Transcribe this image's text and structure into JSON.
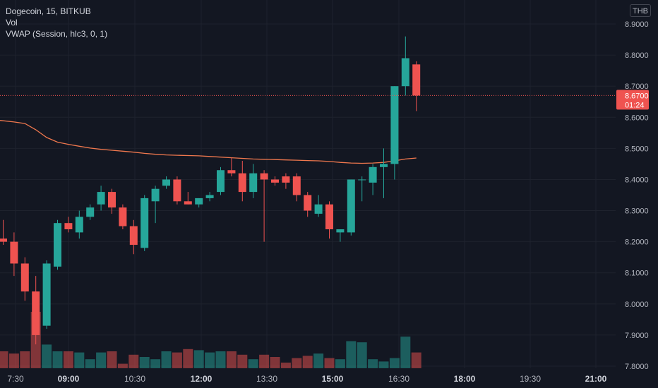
{
  "legend": {
    "symbol_line": "Dogecoin, 15, BITKUB",
    "volume_label": "Vol",
    "vwap_label": "VWAP (Session, hlc3, 0, 1)"
  },
  "currency": "THB",
  "last_price_label": {
    "price": "8.6700",
    "countdown": "01:24"
  },
  "colors": {
    "background": "#131722",
    "up": "#26a69a",
    "down": "#ef5350",
    "vwap": "#f0784e",
    "grid": "#1e222d",
    "axis_text": "#b2b5be"
  },
  "chart_data": {
    "type": "candlestick",
    "y_axis": {
      "ticks": [
        "7.8000",
        "7.9000",
        "8.0000",
        "8.1000",
        "8.2000",
        "8.3000",
        "8.4000",
        "8.5000",
        "8.6000",
        "8.7000",
        "8.8000",
        "8.9000"
      ],
      "range": [
        7.795,
        8.935
      ]
    },
    "x_axis": {
      "ticks": [
        {
          "label": "7:30",
          "bold": false
        },
        {
          "label": "09:00",
          "bold": true
        },
        {
          "label": "10:30",
          "bold": false
        },
        {
          "label": "12:00",
          "bold": true
        },
        {
          "label": "13:30",
          "bold": false
        },
        {
          "label": "15:00",
          "bold": true
        },
        {
          "label": "16:30",
          "bold": false
        },
        {
          "label": "18:00",
          "bold": true
        },
        {
          "label": "19:30",
          "bold": false
        },
        {
          "label": "21:00",
          "bold": true
        }
      ]
    },
    "last_price": 8.67,
    "candles": [
      {
        "time": "07:15",
        "o": 8.21,
        "h": 8.27,
        "l": 8.19,
        "c": 8.2,
        "vol": 0.3
      },
      {
        "time": "07:30",
        "o": 8.2,
        "h": 8.23,
        "l": 8.09,
        "c": 8.13,
        "vol": 0.26
      },
      {
        "time": "07:45",
        "o": 8.13,
        "h": 8.15,
        "l": 8.01,
        "c": 8.04,
        "vol": 0.3
      },
      {
        "time": "08:00",
        "o": 8.04,
        "h": 8.09,
        "l": 7.87,
        "c": 7.9,
        "vol": 1.0
      },
      {
        "time": "08:15",
        "o": 7.93,
        "h": 8.14,
        "l": 7.92,
        "c": 8.13,
        "vol": 0.42
      },
      {
        "time": "08:30",
        "o": 8.12,
        "h": 8.27,
        "l": 8.11,
        "c": 8.26,
        "vol": 0.3
      },
      {
        "time": "08:45",
        "o": 8.26,
        "h": 8.28,
        "l": 8.23,
        "c": 8.24,
        "vol": 0.3
      },
      {
        "time": "09:00",
        "o": 8.23,
        "h": 8.3,
        "l": 8.21,
        "c": 8.28,
        "vol": 0.28
      },
      {
        "time": "09:15",
        "o": 8.28,
        "h": 8.32,
        "l": 8.27,
        "c": 8.31,
        "vol": 0.16
      },
      {
        "time": "09:30",
        "o": 8.32,
        "h": 8.38,
        "l": 8.3,
        "c": 8.36,
        "vol": 0.28
      },
      {
        "time": "09:45",
        "o": 8.36,
        "h": 8.37,
        "l": 8.29,
        "c": 8.31,
        "vol": 0.3
      },
      {
        "time": "10:00",
        "o": 8.31,
        "h": 8.32,
        "l": 8.24,
        "c": 8.25,
        "vol": 0.08
      },
      {
        "time": "10:15",
        "o": 8.25,
        "h": 8.27,
        "l": 8.16,
        "c": 8.19,
        "vol": 0.24
      },
      {
        "time": "10:30",
        "o": 8.18,
        "h": 8.35,
        "l": 8.17,
        "c": 8.34,
        "vol": 0.2
      },
      {
        "time": "10:45",
        "o": 8.33,
        "h": 8.38,
        "l": 8.26,
        "c": 8.37,
        "vol": 0.16
      },
      {
        "time": "11:00",
        "o": 8.38,
        "h": 8.41,
        "l": 8.37,
        "c": 8.4,
        "vol": 0.3
      },
      {
        "time": "11:15",
        "o": 8.4,
        "h": 8.41,
        "l": 8.32,
        "c": 8.33,
        "vol": 0.28
      },
      {
        "time": "11:30",
        "o": 8.33,
        "h": 8.36,
        "l": 8.32,
        "c": 8.32,
        "vol": 0.34
      },
      {
        "time": "11:45",
        "o": 8.32,
        "h": 8.34,
        "l": 8.31,
        "c": 8.34,
        "vol": 0.32
      },
      {
        "time": "12:00",
        "o": 8.34,
        "h": 8.36,
        "l": 8.33,
        "c": 8.35,
        "vol": 0.28
      },
      {
        "time": "12:15",
        "o": 8.36,
        "h": 8.44,
        "l": 8.35,
        "c": 8.43,
        "vol": 0.3
      },
      {
        "time": "12:30",
        "o": 8.43,
        "h": 8.47,
        "l": 8.41,
        "c": 8.42,
        "vol": 0.3
      },
      {
        "time": "12:45",
        "o": 8.42,
        "h": 8.46,
        "l": 8.33,
        "c": 8.36,
        "vol": 0.24
      },
      {
        "time": "13:00",
        "o": 8.36,
        "h": 8.45,
        "l": 8.34,
        "c": 8.42,
        "vol": 0.16
      },
      {
        "time": "13:15",
        "o": 8.42,
        "h": 8.43,
        "l": 8.2,
        "c": 8.4,
        "vol": 0.24
      },
      {
        "time": "13:30",
        "o": 8.4,
        "h": 8.41,
        "l": 8.38,
        "c": 8.39,
        "vol": 0.2
      },
      {
        "time": "13:45",
        "o": 8.41,
        "h": 8.42,
        "l": 8.37,
        "c": 8.39,
        "vol": 0.1
      },
      {
        "time": "14:00",
        "o": 8.41,
        "h": 8.42,
        "l": 8.33,
        "c": 8.35,
        "vol": 0.18
      },
      {
        "time": "14:15",
        "o": 8.35,
        "h": 8.36,
        "l": 8.28,
        "c": 8.3,
        "vol": 0.22
      },
      {
        "time": "14:30",
        "o": 8.29,
        "h": 8.35,
        "l": 8.28,
        "c": 8.32,
        "vol": 0.26
      },
      {
        "time": "14:45",
        "o": 8.32,
        "h": 8.33,
        "l": 8.21,
        "c": 8.24,
        "vol": 0.18
      },
      {
        "time": "15:00",
        "o": 8.23,
        "h": 8.24,
        "l": 8.2,
        "c": 8.24,
        "vol": 0.16
      },
      {
        "time": "15:15",
        "o": 8.23,
        "h": 8.4,
        "l": 8.22,
        "c": 8.4,
        "vol": 0.48
      },
      {
        "time": "15:30",
        "o": 8.4,
        "h": 8.41,
        "l": 8.33,
        "c": 8.4,
        "vol": 0.46
      },
      {
        "time": "15:45",
        "o": 8.39,
        "h": 8.45,
        "l": 8.35,
        "c": 8.44,
        "vol": 0.16
      },
      {
        "time": "16:00",
        "o": 8.44,
        "h": 8.5,
        "l": 8.34,
        "c": 8.45,
        "vol": 0.12
      },
      {
        "time": "16:15",
        "o": 8.45,
        "h": 8.7,
        "l": 8.4,
        "c": 8.7,
        "vol": 0.18
      },
      {
        "time": "16:30",
        "o": 8.7,
        "h": 8.86,
        "l": 8.67,
        "c": 8.79,
        "vol": 0.56
      },
      {
        "time": "16:45",
        "o": 8.77,
        "h": 8.78,
        "l": 8.62,
        "c": 8.67,
        "vol": 0.28
      }
    ],
    "vwap": [
      8.59,
      8.585,
      8.58,
      8.56,
      8.535,
      8.52,
      8.513,
      8.507,
      8.501,
      8.497,
      8.494,
      8.491,
      8.488,
      8.484,
      8.481,
      8.479,
      8.478,
      8.477,
      8.476,
      8.474,
      8.472,
      8.47,
      8.468,
      8.466,
      8.465,
      8.464,
      8.463,
      8.462,
      8.461,
      8.46,
      8.458,
      8.455,
      8.453,
      8.452,
      8.453,
      8.455,
      8.46,
      8.466,
      8.469
    ]
  }
}
